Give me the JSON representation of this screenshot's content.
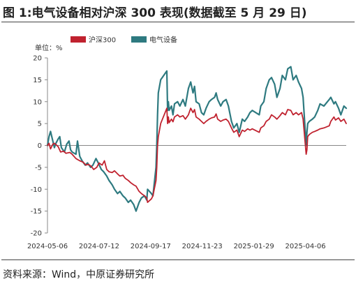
{
  "figure": {
    "title": "图 1:电气设备相对沪深 300 表现(数据截至 5 月 29 日)",
    "source": "资料来源：Wind，中原证券研究所",
    "unit_label": "单位：%"
  },
  "colors": {
    "hs300": "#c0222f",
    "electrical": "#2e7a80",
    "axis": "#888888"
  },
  "chart_data": {
    "type": "line",
    "title": "",
    "xlabel": "",
    "ylabel": "单位：%",
    "ylim": [
      -20,
      20
    ],
    "yticks": [
      -20,
      -15,
      -10,
      -5,
      0,
      5,
      10,
      15,
      20
    ],
    "xlim": [
      "2024-05-06",
      "2025-05-29"
    ],
    "xticks": [
      "2024-05-06",
      "2024-07-12",
      "2024-09-17",
      "2024-11-23",
      "2025-01-29",
      "2025-04-06"
    ],
    "legend_position": "top-left",
    "series": [
      {
        "name": "沪深300",
        "color": "#c0222f",
        "points": [
          [
            "2024-05-06",
            0
          ],
          [
            "2024-05-08",
            0.5
          ],
          [
            "2024-05-10",
            -0.8
          ],
          [
            "2024-05-13",
            0.3
          ],
          [
            "2024-05-15",
            0.5
          ],
          [
            "2024-05-17",
            0.2
          ],
          [
            "2024-05-20",
            -0.3
          ],
          [
            "2024-05-23",
            -1.5
          ],
          [
            "2024-05-27",
            -1.3
          ],
          [
            "2024-05-30",
            -1.8
          ],
          [
            "2024-06-04",
            -1.6
          ],
          [
            "2024-06-07",
            -2.0
          ],
          [
            "2024-06-12",
            -3.0
          ],
          [
            "2024-06-17",
            -3.5
          ],
          [
            "2024-06-21",
            -3.8
          ],
          [
            "2024-06-25",
            -4.5
          ],
          [
            "2024-06-28",
            -4.3
          ],
          [
            "2024-07-02",
            -4.8
          ],
          [
            "2024-07-05",
            -5.5
          ],
          [
            "2024-07-09",
            -5.0
          ],
          [
            "2024-07-12",
            -4.0
          ],
          [
            "2024-07-16",
            -4.5
          ],
          [
            "2024-07-19",
            -3.5
          ],
          [
            "2024-07-22",
            -5.5
          ],
          [
            "2024-07-25",
            -6.0
          ],
          [
            "2024-07-29",
            -6.2
          ],
          [
            "2024-08-01",
            -5.8
          ],
          [
            "2024-08-05",
            -6.5
          ],
          [
            "2024-08-08",
            -7.0
          ],
          [
            "2024-08-12",
            -6.8
          ],
          [
            "2024-08-15",
            -7.5
          ],
          [
            "2024-08-19",
            -8.0
          ],
          [
            "2024-08-22",
            -8.5
          ],
          [
            "2024-08-26",
            -9.0
          ],
          [
            "2024-08-29",
            -9.3
          ],
          [
            "2024-09-02",
            -10.5
          ],
          [
            "2024-09-05",
            -11.0
          ],
          [
            "2024-09-09",
            -11.5
          ],
          [
            "2024-09-12",
            -12.0
          ],
          [
            "2024-09-13",
            -13.0
          ],
          [
            "2024-09-18",
            -12.2
          ],
          [
            "2024-09-20",
            -11.5
          ],
          [
            "2024-09-24",
            -8.0
          ],
          [
            "2024-09-25",
            -5.0
          ],
          [
            "2024-09-26",
            0.0
          ],
          [
            "2024-09-27",
            2.0
          ],
          [
            "2024-09-30",
            5.0
          ],
          [
            "2024-10-08",
            8.5
          ],
          [
            "2024-10-09",
            5.0
          ],
          [
            "2024-10-10",
            6.5
          ],
          [
            "2024-10-11",
            5.2
          ],
          [
            "2024-10-14",
            6.0
          ],
          [
            "2024-10-16",
            5.4
          ],
          [
            "2024-10-18",
            6.5
          ],
          [
            "2024-10-22",
            7.0
          ],
          [
            "2024-10-25",
            6.5
          ],
          [
            "2024-10-29",
            6.8
          ],
          [
            "2024-11-01",
            6.0
          ],
          [
            "2024-11-05",
            7.0
          ],
          [
            "2024-11-08",
            8.5
          ],
          [
            "2024-11-11",
            7.5
          ],
          [
            "2024-11-13",
            8.2
          ],
          [
            "2024-11-15",
            6.5
          ],
          [
            "2024-11-19",
            6.0
          ],
          [
            "2024-11-22",
            5.5
          ],
          [
            "2024-11-25",
            5.0
          ],
          [
            "2024-11-28",
            5.5
          ],
          [
            "2024-12-02",
            6.0
          ],
          [
            "2024-12-05",
            6.3
          ],
          [
            "2024-12-09",
            6.5
          ],
          [
            "2024-12-11",
            7.2
          ],
          [
            "2024-12-13",
            6.0
          ],
          [
            "2024-12-17",
            5.5
          ],
          [
            "2024-12-20",
            5.8
          ],
          [
            "2024-12-24",
            6.0
          ],
          [
            "2024-12-27",
            5.5
          ],
          [
            "2024-12-31",
            4.0
          ],
          [
            "2025-01-03",
            3.0
          ],
          [
            "2025-01-07",
            3.5
          ],
          [
            "2025-01-10",
            2.0
          ],
          [
            "2025-01-14",
            3.5
          ],
          [
            "2025-01-17",
            3.2
          ],
          [
            "2025-01-21",
            3.8
          ],
          [
            "2025-01-24",
            3.5
          ],
          [
            "2025-01-27",
            3.8
          ],
          [
            "2025-02-05",
            3.0
          ],
          [
            "2025-02-07",
            4.0
          ],
          [
            "2025-02-11",
            4.5
          ],
          [
            "2025-02-14",
            5.5
          ],
          [
            "2025-02-18",
            6.0
          ],
          [
            "2025-02-21",
            7.0
          ],
          [
            "2025-02-25",
            6.5
          ],
          [
            "2025-02-28",
            6.0
          ],
          [
            "2025-03-04",
            6.8
          ],
          [
            "2025-03-07",
            7.5
          ],
          [
            "2025-03-11",
            7.0
          ],
          [
            "2025-03-14",
            8.2
          ],
          [
            "2025-03-18",
            8.0
          ],
          [
            "2025-03-21",
            7.0
          ],
          [
            "2025-03-25",
            7.5
          ],
          [
            "2025-03-28",
            7.0
          ],
          [
            "2025-04-01",
            7.5
          ],
          [
            "2025-04-03",
            6.0
          ],
          [
            "2025-04-07",
            -2.0
          ],
          [
            "2025-04-08",
            -1.0
          ],
          [
            "2025-04-09",
            2.0
          ],
          [
            "2025-04-11",
            2.5
          ],
          [
            "2025-04-15",
            3.0
          ],
          [
            "2025-04-18",
            3.2
          ],
          [
            "2025-04-22",
            3.5
          ],
          [
            "2025-04-25",
            3.8
          ],
          [
            "2025-04-30",
            4.0
          ],
          [
            "2025-05-07",
            4.5
          ],
          [
            "2025-05-09",
            5.5
          ],
          [
            "2025-05-13",
            6.5
          ],
          [
            "2025-05-15",
            5.8
          ],
          [
            "2025-05-19",
            6.3
          ],
          [
            "2025-05-22",
            5.5
          ],
          [
            "2025-05-26",
            6.0
          ],
          [
            "2025-05-29",
            5.0
          ]
        ]
      },
      {
        "name": "电气设备",
        "color": "#2e7a80",
        "points": [
          [
            "2024-05-06",
            0
          ],
          [
            "2024-05-08",
            2.0
          ],
          [
            "2024-05-10",
            3.2
          ],
          [
            "2024-05-13",
            1.0
          ],
          [
            "2024-05-15",
            -0.5
          ],
          [
            "2024-05-17",
            0.5
          ],
          [
            "2024-05-20",
            1.5
          ],
          [
            "2024-05-22",
            2.0
          ],
          [
            "2024-05-24",
            -0.5
          ],
          [
            "2024-05-28",
            -1.5
          ],
          [
            "2024-05-31",
            0.3
          ],
          [
            "2024-06-03",
            1.0
          ],
          [
            "2024-06-05",
            -1.0
          ],
          [
            "2024-06-07",
            -1.5
          ],
          [
            "2024-06-12",
            -2.0
          ],
          [
            "2024-06-14",
            1.0
          ],
          [
            "2024-06-17",
            -2.5
          ],
          [
            "2024-06-20",
            -3.5
          ],
          [
            "2024-06-24",
            -4.5
          ],
          [
            "2024-06-27",
            -4.0
          ],
          [
            "2024-07-01",
            -5.0
          ],
          [
            "2024-07-04",
            -4.5
          ],
          [
            "2024-07-08",
            -3.0
          ],
          [
            "2024-07-11",
            -4.0
          ],
          [
            "2024-07-15",
            -5.5
          ],
          [
            "2024-07-18",
            -6.0
          ],
          [
            "2024-07-22",
            -7.0
          ],
          [
            "2024-07-25",
            -8.0
          ],
          [
            "2024-07-29",
            -9.0
          ],
          [
            "2024-08-01",
            -10.0
          ],
          [
            "2024-08-05",
            -11.0
          ],
          [
            "2024-08-08",
            -10.5
          ],
          [
            "2024-08-12",
            -11.5
          ],
          [
            "2024-08-15",
            -12.0
          ],
          [
            "2024-08-19",
            -13.0
          ],
          [
            "2024-08-22",
            -12.5
          ],
          [
            "2024-08-26",
            -13.5
          ],
          [
            "2024-08-29",
            -15.0
          ],
          [
            "2024-09-02",
            -13.0
          ],
          [
            "2024-09-05",
            -12.0
          ],
          [
            "2024-09-09",
            -11.5
          ],
          [
            "2024-09-12",
            -12.5
          ],
          [
            "2024-09-13",
            -10.0
          ],
          [
            "2024-09-18",
            -11.0
          ],
          [
            "2024-09-20",
            -11.5
          ],
          [
            "2024-09-24",
            -5.0
          ],
          [
            "2024-09-25",
            0.0
          ],
          [
            "2024-09-26",
            7.0
          ],
          [
            "2024-09-27",
            12.0
          ],
          [
            "2024-09-30",
            15.0
          ],
          [
            "2024-10-08",
            17.0
          ],
          [
            "2024-10-09",
            8.0
          ],
          [
            "2024-10-10",
            10.0
          ],
          [
            "2024-10-11",
            8.0
          ],
          [
            "2024-10-14",
            9.0
          ],
          [
            "2024-10-16",
            7.0
          ],
          [
            "2024-10-18",
            9.5
          ],
          [
            "2024-10-22",
            10.0
          ],
          [
            "2024-10-25",
            9.0
          ],
          [
            "2024-10-29",
            10.5
          ],
          [
            "2024-11-01",
            9.0
          ],
          [
            "2024-11-05",
            13.0
          ],
          [
            "2024-11-08",
            14.5
          ],
          [
            "2024-11-11",
            12.0
          ],
          [
            "2024-11-13",
            13.5
          ],
          [
            "2024-11-15",
            10.0
          ],
          [
            "2024-11-19",
            9.5
          ],
          [
            "2024-11-22",
            7.5
          ],
          [
            "2024-11-25",
            7.0
          ],
          [
            "2024-11-28",
            8.5
          ],
          [
            "2024-12-02",
            10.0
          ],
          [
            "2024-12-05",
            10.5
          ],
          [
            "2024-12-09",
            11.0
          ],
          [
            "2024-12-11",
            12.0
          ],
          [
            "2024-12-13",
            10.5
          ],
          [
            "2024-12-17",
            9.0
          ],
          [
            "2024-12-20",
            10.0
          ],
          [
            "2024-12-24",
            10.5
          ],
          [
            "2024-12-27",
            9.0
          ],
          [
            "2024-12-31",
            5.5
          ],
          [
            "2025-01-03",
            4.0
          ],
          [
            "2025-01-07",
            5.0
          ],
          [
            "2025-01-10",
            3.0
          ],
          [
            "2025-01-14",
            6.0
          ],
          [
            "2025-01-17",
            5.5
          ],
          [
            "2025-01-21",
            6.5
          ],
          [
            "2025-01-24",
            7.5
          ],
          [
            "2025-01-27",
            8.0
          ],
          [
            "2025-02-05",
            7.0
          ],
          [
            "2025-02-07",
            9.0
          ],
          [
            "2025-02-11",
            10.0
          ],
          [
            "2025-02-14",
            13.0
          ],
          [
            "2025-02-18",
            15.0
          ],
          [
            "2025-02-21",
            15.5
          ],
          [
            "2025-02-25",
            14.0
          ],
          [
            "2025-02-28",
            11.0
          ],
          [
            "2025-03-04",
            13.0
          ],
          [
            "2025-03-07",
            16.0
          ],
          [
            "2025-03-11",
            15.0
          ],
          [
            "2025-03-14",
            17.5
          ],
          [
            "2025-03-18",
            18.0
          ],
          [
            "2025-03-21",
            15.0
          ],
          [
            "2025-03-25",
            16.0
          ],
          [
            "2025-03-28",
            14.5
          ],
          [
            "2025-04-01",
            13.0
          ],
          [
            "2025-04-03",
            11.0
          ],
          [
            "2025-04-07",
            0.0
          ],
          [
            "2025-04-08",
            3.0
          ],
          [
            "2025-04-09",
            5.0
          ],
          [
            "2025-04-11",
            5.5
          ],
          [
            "2025-04-15",
            6.0
          ],
          [
            "2025-04-18",
            6.5
          ],
          [
            "2025-04-22",
            8.0
          ],
          [
            "2025-04-25",
            9.5
          ],
          [
            "2025-04-30",
            9.0
          ],
          [
            "2025-05-07",
            10.5
          ],
          [
            "2025-05-09",
            11.0
          ],
          [
            "2025-05-13",
            9.5
          ],
          [
            "2025-05-15",
            10.0
          ],
          [
            "2025-05-19",
            8.5
          ],
          [
            "2025-05-22",
            7.0
          ],
          [
            "2025-05-26",
            9.0
          ],
          [
            "2025-05-29",
            8.5
          ]
        ]
      }
    ]
  }
}
